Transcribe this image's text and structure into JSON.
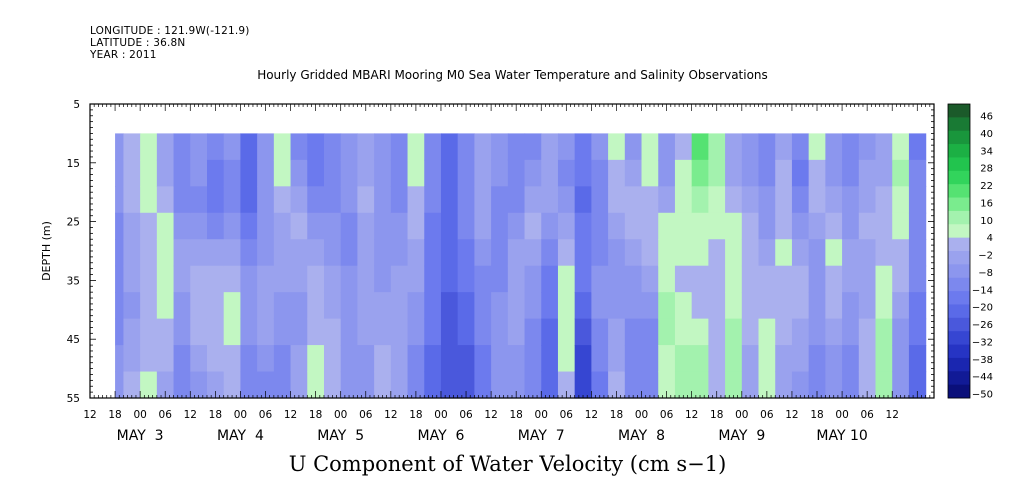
{
  "header": {
    "longitude": "LONGITUDE : 121.9W(-121.9)",
    "latitude": "LATITUDE : 36.8N",
    "year": "YEAR : 2011"
  },
  "chart_data": {
    "type": "heatmap",
    "title": "Hourly Gridded MBARI Mooring M0 Sea Water Temperature and Salinity Observations",
    "xlabel": "U Component of Water Velocity (cm s−1)",
    "ylabel": "DEPTH (m)",
    "yticks": [
      5,
      15,
      25,
      35,
      45,
      55
    ],
    "ylim": [
      5,
      55
    ],
    "data_depth_range": [
      10,
      55
    ],
    "x_hour_labels": [
      "12",
      "18",
      "00",
      "06",
      "12",
      "18",
      "00",
      "06",
      "12",
      "18",
      "00",
      "06",
      "12",
      "18",
      "00",
      "06",
      "12",
      "18",
      "00",
      "06",
      "12",
      "18",
      "00",
      "06",
      "12",
      "18",
      "00",
      "06",
      "12",
      "18",
      "00",
      "06",
      "12"
    ],
    "x_day_labels": [
      "MAY  3",
      "MAY  4",
      "MAY  5",
      "MAY  6",
      "MAY  7",
      "MAY  8",
      "MAY  9",
      "MAY 10"
    ],
    "time_range_hours_from_may2_12": [
      0,
      202
    ],
    "data_time_range_hours_from_may2_12": [
      6,
      200
    ],
    "colorbar": {
      "levels": [
        -50,
        -44,
        -38,
        -32,
        -26,
        -20,
        -14,
        -8,
        -2,
        4,
        10,
        16,
        22,
        28,
        34,
        40,
        46
      ],
      "labels": [
        "46",
        "40",
        "34",
        "28",
        "22",
        "16",
        "10",
        "4",
        "−2",
        "−8",
        "−14",
        "−20",
        "−26",
        "−32",
        "−38",
        "−44",
        "−50"
      ],
      "colors_top_to_bottom": [
        "#1b5a2a",
        "#197a34",
        "#19963c",
        "#1cb044",
        "#22c44e",
        "#32d45c",
        "#55e272",
        "#7aec8e",
        "#a3f2ae",
        "#c2f7c2",
        "#aab0ee",
        "#9aa2ee",
        "#8c96ee",
        "#7c88ee",
        "#6c7aee",
        "#5a6ae8",
        "#4a58dc",
        "#3646d2",
        "#2634c4",
        "#1a26b0",
        "#111a96",
        "#0a0f7a"
      ]
    },
    "profiles_description": "alternating weak eastward (green, +4 to +16) and westward (blue, -2 to -30) bands",
    "columns": [
      {
        "t": 6,
        "u": [
          -8,
          -8,
          -10,
          -12,
          -12,
          -12,
          -14,
          -12,
          -10,
          -8
        ]
      },
      {
        "t": 10,
        "u": [
          2,
          0,
          -2,
          -4,
          -4,
          -6,
          -8,
          -6,
          -4,
          -2
        ]
      },
      {
        "t": 14,
        "u": [
          4,
          6,
          4,
          2,
          0,
          -2,
          -2,
          0,
          2,
          4
        ]
      },
      {
        "t": 18,
        "u": [
          -4,
          -4,
          0,
          4,
          6,
          6,
          4,
          2,
          -2,
          -4
        ]
      },
      {
        "t": 22,
        "u": [
          -12,
          -14,
          -14,
          -10,
          -6,
          -4,
          -8,
          -10,
          -12,
          -12
        ]
      },
      {
        "t": 26,
        "u": [
          -10,
          -10,
          -12,
          -8,
          -4,
          0,
          2,
          -2,
          -6,
          -8
        ]
      },
      {
        "t": 30,
        "u": [
          -14,
          -16,
          -16,
          -12,
          -6,
          -2,
          0,
          0,
          -2,
          -4
        ]
      },
      {
        "t": 34,
        "u": [
          -10,
          -12,
          -12,
          -8,
          -4,
          0,
          4,
          4,
          2,
          -2
        ]
      },
      {
        "t": 38,
        "u": [
          -20,
          -22,
          -20,
          -16,
          -12,
          -10,
          -10,
          -10,
          -12,
          -14
        ]
      },
      {
        "t": 42,
        "u": [
          -8,
          -8,
          -10,
          -10,
          -8,
          -6,
          -4,
          -6,
          -10,
          -12
        ]
      },
      {
        "t": 46,
        "u": [
          4,
          4,
          0,
          -4,
          -6,
          -6,
          -8,
          -10,
          -12,
          -12
        ]
      },
      {
        "t": 50,
        "u": [
          -12,
          -8,
          -4,
          -2,
          -4,
          -6,
          -8,
          -8,
          -6,
          -6
        ]
      },
      {
        "t": 54,
        "u": [
          -16,
          -16,
          -12,
          -8,
          -4,
          0,
          2,
          2,
          4,
          6
        ]
      },
      {
        "t": 58,
        "u": [
          -14,
          -14,
          -12,
          -10,
          -8,
          -6,
          -4,
          -2,
          0,
          0
        ]
      },
      {
        "t": 62,
        "u": [
          -8,
          -8,
          -10,
          -12,
          -12,
          -10,
          -8,
          -8,
          -10,
          -10
        ]
      },
      {
        "t": 66,
        "u": [
          -6,
          -4,
          -2,
          -4,
          -6,
          -6,
          -4,
          -6,
          -8,
          -8
        ]
      },
      {
        "t": 70,
        "u": [
          -10,
          -10,
          -8,
          -8,
          -8,
          -8,
          -6,
          -4,
          0,
          2
        ]
      },
      {
        "t": 74,
        "u": [
          -14,
          -14,
          -12,
          -10,
          -8,
          -6,
          -6,
          -6,
          -6,
          -6
        ]
      },
      {
        "t": 78,
        "u": [
          4,
          4,
          2,
          -2,
          -4,
          -6,
          -8,
          -10,
          -12,
          -12
        ]
      },
      {
        "t": 82,
        "u": [
          -12,
          -12,
          -14,
          -16,
          -16,
          -16,
          -16,
          -18,
          -20,
          -20
        ]
      },
      {
        "t": 86,
        "u": [
          -20,
          -20,
          -20,
          -22,
          -22,
          -22,
          -24,
          -24,
          -26,
          -26
        ]
      },
      {
        "t": 90,
        "u": [
          -14,
          -12,
          -12,
          -14,
          -16,
          -18,
          -20,
          -22,
          -24,
          -24
        ]
      },
      {
        "t": 94,
        "u": [
          -6,
          -6,
          -4,
          -6,
          -10,
          -12,
          -14,
          -14,
          -16,
          -16
        ]
      },
      {
        "t": 98,
        "u": [
          -10,
          -10,
          -12,
          -14,
          -14,
          -12,
          -10,
          -8,
          -8,
          -8
        ]
      },
      {
        "t": 102,
        "u": [
          -14,
          -14,
          -12,
          -8,
          -6,
          -4,
          -4,
          -6,
          -8,
          -10
        ]
      },
      {
        "t": 106,
        "u": [
          -12,
          -8,
          -4,
          0,
          -4,
          -8,
          -10,
          -12,
          -14,
          -14
        ]
      },
      {
        "t": 110,
        "u": [
          -4,
          -4,
          -6,
          -10,
          -14,
          -16,
          -18,
          -20,
          -22,
          -22
        ]
      },
      {
        "t": 114,
        "u": [
          -10,
          -12,
          -10,
          -6,
          -2,
          4,
          6,
          6,
          4,
          2
        ]
      },
      {
        "t": 118,
        "u": [
          -16,
          -18,
          -20,
          -18,
          -16,
          -18,
          -22,
          -26,
          -30,
          -32
        ]
      },
      {
        "t": 122,
        "u": [
          -10,
          -12,
          -14,
          -14,
          -12,
          -10,
          -10,
          -12,
          -14,
          -16
        ]
      },
      {
        "t": 126,
        "u": [
          6,
          2,
          -2,
          -6,
          -8,
          -10,
          -8,
          -6,
          -4,
          -2
        ]
      },
      {
        "t": 130,
        "u": [
          -8,
          -4,
          0,
          -2,
          -6,
          -8,
          -10,
          -12,
          -12,
          -12
        ]
      },
      {
        "t": 134,
        "u": [
          4,
          4,
          2,
          0,
          0,
          -4,
          -8,
          -12,
          -14,
          -14
        ]
      },
      {
        "t": 138,
        "u": [
          -10,
          -8,
          -4,
          4,
          6,
          6,
          8,
          8,
          6,
          4
        ]
      },
      {
        "t": 142,
        "u": [
          0,
          4,
          6,
          6,
          4,
          2,
          4,
          6,
          8,
          8
        ]
      },
      {
        "t": 146,
        "u": [
          16,
          14,
          10,
          6,
          4,
          2,
          2,
          4,
          8,
          10
        ]
      },
      {
        "t": 150,
        "u": [
          8,
          10,
          6,
          4,
          2,
          0,
          -2,
          -2,
          0,
          2
        ]
      },
      {
        "t": 154,
        "u": [
          -6,
          -4,
          0,
          4,
          4,
          4,
          6,
          8,
          10,
          10
        ]
      },
      {
        "t": 158,
        "u": [
          -10,
          -8,
          -6,
          -2,
          2,
          2,
          0,
          -2,
          -4,
          -6
        ]
      },
      {
        "t": 162,
        "u": [
          -14,
          -12,
          -10,
          -8,
          -4,
          0,
          2,
          4,
          6,
          6
        ]
      },
      {
        "t": 166,
        "u": [
          -6,
          -2,
          0,
          2,
          4,
          2,
          0,
          -2,
          -4,
          -4
        ]
      },
      {
        "t": 170,
        "u": [
          -14,
          -16,
          -12,
          -8,
          -4,
          -2,
          -2,
          -4,
          -6,
          -8
        ]
      },
      {
        "t": 174,
        "u": [
          4,
          2,
          -2,
          -6,
          -8,
          -10,
          -10,
          -10,
          -12,
          -12
        ]
      },
      {
        "t": 178,
        "u": [
          -10,
          -8,
          -4,
          2,
          4,
          2,
          0,
          -4,
          -8,
          -10
        ]
      },
      {
        "t": 182,
        "u": [
          -12,
          -12,
          -10,
          -8,
          -6,
          -6,
          -8,
          -10,
          -12,
          -12
        ]
      },
      {
        "t": 186,
        "u": [
          -8,
          -6,
          -4,
          -2,
          -4,
          -6,
          -4,
          -2,
          0,
          2
        ]
      },
      {
        "t": 190,
        "u": [
          -4,
          -4,
          -2,
          0,
          2,
          4,
          6,
          8,
          10,
          10
        ]
      },
      {
        "t": 194,
        "u": [
          6,
          8,
          6,
          4,
          2,
          0,
          -4,
          -8,
          -10,
          -10
        ]
      },
      {
        "t": 198,
        "u": [
          -16,
          -14,
          -12,
          -12,
          -12,
          -14,
          -16,
          -18,
          -20,
          -20
        ]
      }
    ]
  }
}
